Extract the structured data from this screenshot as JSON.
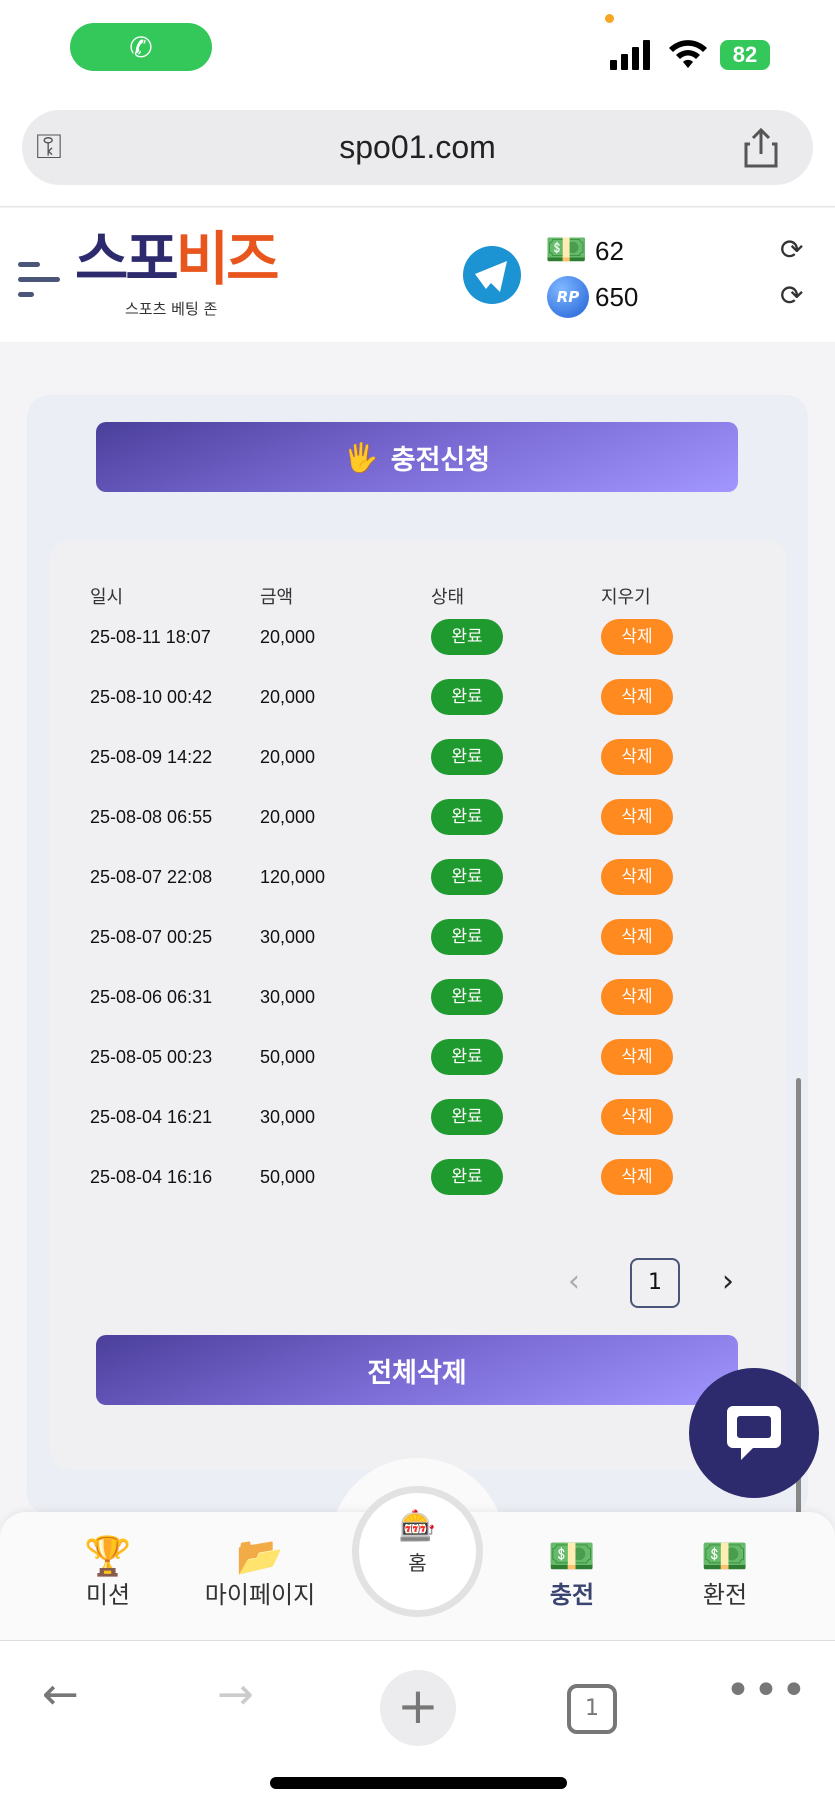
{
  "status_bar": {
    "battery": "82"
  },
  "browser": {
    "url": "spo01.com",
    "tab_count": "1"
  },
  "header": {
    "logo_main_1": "스포",
    "logo_main_2": "비즈",
    "logo_sub": "스포츠 베팅 존",
    "money": "62",
    "rp": "650",
    "rp_label": "RP"
  },
  "colors": {
    "accent": "#7a6bd4",
    "ok": "#1f9a2f",
    "delete": "#ff8a1f",
    "logo_navy": "#2d2a6e",
    "logo_orange": "#e8561d"
  },
  "main": {
    "charge_button": "충전신청",
    "columns": [
      "일시",
      "금액",
      "상태",
      "지우기"
    ],
    "rows": [
      {
        "date": "25-08-11 18:07",
        "amount": "20,000",
        "status": "완료",
        "action": "삭제"
      },
      {
        "date": "25-08-10 00:42",
        "amount": "20,000",
        "status": "완료",
        "action": "삭제"
      },
      {
        "date": "25-08-09 14:22",
        "amount": "20,000",
        "status": "완료",
        "action": "삭제"
      },
      {
        "date": "25-08-08 06:55",
        "amount": "20,000",
        "status": "완료",
        "action": "삭제"
      },
      {
        "date": "25-08-07 22:08",
        "amount": "120,000",
        "status": "완료",
        "action": "삭제"
      },
      {
        "date": "25-08-07 00:25",
        "amount": "30,000",
        "status": "완료",
        "action": "삭제"
      },
      {
        "date": "25-08-06 06:31",
        "amount": "30,000",
        "status": "완료",
        "action": "삭제"
      },
      {
        "date": "25-08-05 00:23",
        "amount": "50,000",
        "status": "완료",
        "action": "삭제"
      },
      {
        "date": "25-08-04 16:21",
        "amount": "30,000",
        "status": "완료",
        "action": "삭제"
      },
      {
        "date": "25-08-04 16:16",
        "amount": "50,000",
        "status": "완료",
        "action": "삭제"
      }
    ],
    "pagination": {
      "current": "1",
      "prev": "‹",
      "next": "›"
    },
    "delete_all_button": "전체삭제"
  },
  "bottom_nav": [
    {
      "label": "미션",
      "icon": "trophy-icon"
    },
    {
      "label": "마이페이지",
      "icon": "folder-icon"
    },
    {
      "label": "홈",
      "icon": "home-logo-icon"
    },
    {
      "label": "충전",
      "icon": "deposit-icon"
    },
    {
      "label": "환전",
      "icon": "withdraw-icon"
    }
  ]
}
